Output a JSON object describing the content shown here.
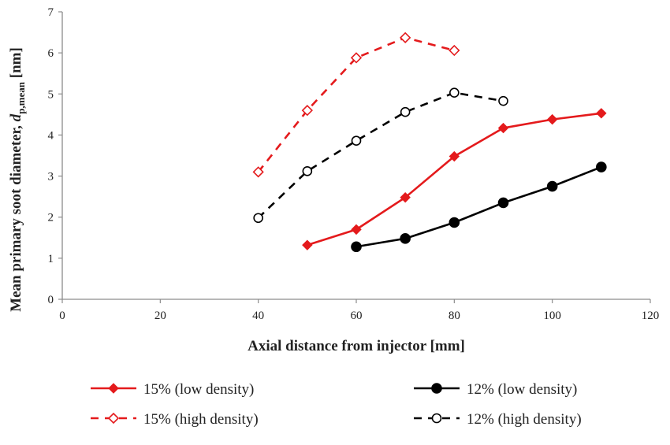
{
  "chart_data": {
    "type": "line",
    "title": "",
    "xlabel": "Axial distance from injector [mm]",
    "ylabel": "Mean primary soot diameter, dp,mean [nm]",
    "ylabel_parts": {
      "main": "Mean primary soot diameter, ",
      "var": "d",
      "sub": "p,mean",
      "unit": " [nm]"
    },
    "xlim": [
      0,
      120
    ],
    "ylim": [
      0,
      7
    ],
    "xticks": [
      0,
      20,
      40,
      60,
      80,
      100,
      120
    ],
    "yticks": [
      0,
      1,
      2,
      3,
      4,
      5,
      6,
      7
    ],
    "grid": false,
    "legend_position": "bottom",
    "series": [
      {
        "name": "15% (low density)",
        "color": "#e41a1c",
        "dash": "solid",
        "marker": "diamond-filled",
        "x": [
          50,
          60,
          70,
          80,
          90,
          100,
          110
        ],
        "y": [
          1.32,
          1.7,
          2.48,
          3.48,
          4.17,
          4.38,
          4.53
        ]
      },
      {
        "name": "12% (low density)",
        "color": "#000000",
        "dash": "solid",
        "marker": "circle-filled",
        "x": [
          60,
          70,
          80,
          90,
          100,
          110
        ],
        "y": [
          1.28,
          1.48,
          1.87,
          2.35,
          2.75,
          3.22
        ]
      },
      {
        "name": "15% (high density)",
        "color": "#e41a1c",
        "dash": "dashed",
        "marker": "diamond-open",
        "x": [
          40,
          50,
          60,
          70,
          80
        ],
        "y": [
          3.1,
          4.6,
          5.88,
          6.37,
          6.06
        ]
      },
      {
        "name": "12% (high density)",
        "color": "#000000",
        "dash": "dashed",
        "marker": "circle-open",
        "x": [
          40,
          50,
          60,
          70,
          80,
          90
        ],
        "y": [
          1.98,
          3.12,
          3.86,
          4.56,
          5.03,
          4.83
        ]
      }
    ]
  }
}
